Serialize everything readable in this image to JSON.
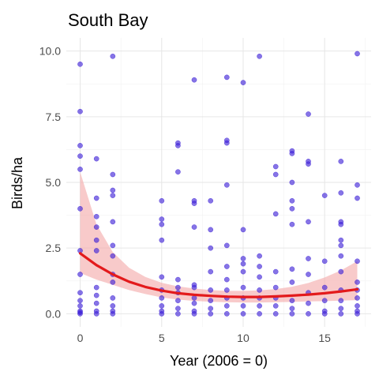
{
  "chart_data": {
    "type": "scatter",
    "title": "South Bay",
    "xlabel": "Year (2006 = 0)",
    "ylabel": "Birds/ha",
    "xlim": [
      -0.85,
      17.85
    ],
    "ylim": [
      -0.5,
      10.5
    ],
    "x_ticks": [
      0,
      5,
      10,
      15
    ],
    "y_ticks": [
      0.0,
      2.5,
      5.0,
      7.5,
      10.0
    ],
    "x_tick_labels": [
      "0",
      "5",
      "10",
      "15"
    ],
    "y_tick_labels": [
      "0.0",
      "2.5",
      "5.0",
      "7.5",
      "10.0"
    ],
    "grid": true,
    "colors": {
      "points": "#3b1fd6",
      "trend_line": "#e31a1c",
      "confidence_band": "#f4a6a6",
      "grid": "#e6e6e6"
    },
    "series": [
      {
        "kind": "points",
        "points": [
          [
            0,
            9.5
          ],
          [
            0,
            7.7
          ],
          [
            0,
            6.4
          ],
          [
            0,
            6.0
          ],
          [
            0,
            5.5
          ],
          [
            0,
            4.0
          ],
          [
            0,
            2.4
          ],
          [
            0,
            1.5
          ],
          [
            0,
            0.8
          ],
          [
            0,
            0.5
          ],
          [
            0,
            0.3
          ],
          [
            0,
            0.1
          ],
          [
            0,
            0.05
          ],
          [
            0,
            0.0
          ],
          [
            1,
            5.9
          ],
          [
            1,
            4.4
          ],
          [
            1,
            3.7
          ],
          [
            1,
            3.3
          ],
          [
            1,
            2.8
          ],
          [
            1,
            2.4
          ],
          [
            1,
            1.0
          ],
          [
            1,
            0.7
          ],
          [
            1,
            0.4
          ],
          [
            1,
            0.1
          ],
          [
            1,
            0.0
          ],
          [
            2,
            9.8
          ],
          [
            2,
            5.3
          ],
          [
            2,
            4.7
          ],
          [
            2,
            4.5
          ],
          [
            2,
            3.5
          ],
          [
            2,
            2.6
          ],
          [
            2,
            2.2
          ],
          [
            2,
            1.5
          ],
          [
            2,
            1.2
          ],
          [
            2,
            0.6
          ],
          [
            2,
            0.3
          ],
          [
            2,
            0.1
          ],
          [
            2,
            0.0
          ],
          [
            5,
            4.3
          ],
          [
            5,
            3.6
          ],
          [
            5,
            3.4
          ],
          [
            5,
            2.8
          ],
          [
            5,
            1.4
          ],
          [
            5,
            0.9
          ],
          [
            5,
            0.6
          ],
          [
            5,
            0.3
          ],
          [
            5,
            0.1
          ],
          [
            5,
            0.0
          ],
          [
            6,
            6.5
          ],
          [
            6,
            6.4
          ],
          [
            6,
            5.4
          ],
          [
            6,
            1.3
          ],
          [
            6,
            1.0
          ],
          [
            6,
            0.8
          ],
          [
            6,
            0.5
          ],
          [
            6,
            0.2
          ],
          [
            6,
            0.0
          ],
          [
            7,
            8.9
          ],
          [
            7,
            4.3
          ],
          [
            7,
            4.2
          ],
          [
            7,
            3.3
          ],
          [
            7,
            1.1
          ],
          [
            7,
            1.0
          ],
          [
            7,
            0.6
          ],
          [
            7,
            0.4
          ],
          [
            7,
            0.1
          ],
          [
            7,
            0.0
          ],
          [
            8,
            4.3
          ],
          [
            8,
            3.2
          ],
          [
            8,
            2.5
          ],
          [
            8,
            1.6
          ],
          [
            8,
            0.9
          ],
          [
            8,
            0.5
          ],
          [
            8,
            0.2
          ],
          [
            8,
            0.0
          ],
          [
            9,
            9.0
          ],
          [
            9,
            6.6
          ],
          [
            9,
            6.5
          ],
          [
            9,
            4.9
          ],
          [
            9,
            2.6
          ],
          [
            9,
            1.8
          ],
          [
            9,
            1.3
          ],
          [
            9,
            0.9
          ],
          [
            9,
            0.6
          ],
          [
            9,
            0.3
          ],
          [
            9,
            0.0
          ],
          [
            10,
            8.8
          ],
          [
            10,
            3.2
          ],
          [
            10,
            2.1
          ],
          [
            10,
            1.9
          ],
          [
            10,
            1.6
          ],
          [
            10,
            1.0
          ],
          [
            10,
            0.6
          ],
          [
            10,
            0.3
          ],
          [
            10,
            0.0
          ],
          [
            11,
            9.8
          ],
          [
            11,
            2.2
          ],
          [
            11,
            1.8
          ],
          [
            11,
            1.4
          ],
          [
            11,
            0.9
          ],
          [
            11,
            0.6
          ],
          [
            11,
            0.3
          ],
          [
            11,
            0.0
          ],
          [
            12,
            5.6
          ],
          [
            12,
            5.3
          ],
          [
            12,
            3.8
          ],
          [
            12,
            1.6
          ],
          [
            12,
            1.0
          ],
          [
            12,
            0.6
          ],
          [
            12,
            0.3
          ],
          [
            12,
            0.0
          ],
          [
            13,
            6.2
          ],
          [
            13,
            6.1
          ],
          [
            13,
            5.0
          ],
          [
            13,
            4.3
          ],
          [
            13,
            4.0
          ],
          [
            13,
            3.4
          ],
          [
            13,
            1.7
          ],
          [
            13,
            1.2
          ],
          [
            13,
            0.5
          ],
          [
            13,
            0.2
          ],
          [
            13,
            0.0
          ],
          [
            14,
            7.6
          ],
          [
            14,
            5.8
          ],
          [
            14,
            5.7
          ],
          [
            14,
            3.5
          ],
          [
            14,
            2.1
          ],
          [
            14,
            1.5
          ],
          [
            14,
            0.8
          ],
          [
            14,
            0.4
          ],
          [
            14,
            0.0
          ],
          [
            15,
            4.5
          ],
          [
            15,
            2.0
          ],
          [
            15,
            1.0
          ],
          [
            15,
            0.5
          ],
          [
            15,
            0.1
          ],
          [
            15,
            0.0
          ],
          [
            16,
            5.8
          ],
          [
            16,
            4.6
          ],
          [
            16,
            3.5
          ],
          [
            16,
            3.4
          ],
          [
            16,
            2.8
          ],
          [
            16,
            2.6
          ],
          [
            16,
            2.2
          ],
          [
            16,
            1.6
          ],
          [
            16,
            0.9
          ],
          [
            16,
            0.5
          ],
          [
            16,
            0.2
          ],
          [
            16,
            0.0
          ],
          [
            17,
            9.9
          ],
          [
            17,
            4.9
          ],
          [
            17,
            4.4
          ],
          [
            17,
            2.0
          ],
          [
            17,
            1.2
          ],
          [
            17,
            0.9
          ],
          [
            17,
            0.6
          ],
          [
            17,
            0.3
          ],
          [
            17,
            0.1
          ],
          [
            17,
            0.0
          ]
        ]
      },
      {
        "kind": "trend",
        "x": [
          0,
          1,
          2,
          3,
          4,
          5,
          6,
          7,
          8,
          9,
          10,
          11,
          12,
          13,
          14,
          15,
          16,
          17
        ],
        "y": [
          2.3,
          1.85,
          1.5,
          1.22,
          1.02,
          0.88,
          0.78,
          0.72,
          0.68,
          0.65,
          0.64,
          0.64,
          0.66,
          0.69,
          0.73,
          0.78,
          0.85,
          0.93
        ],
        "lower": [
          1.55,
          1.3,
          1.1,
          0.9,
          0.75,
          0.62,
          0.54,
          0.49,
          0.46,
          0.44,
          0.43,
          0.43,
          0.44,
          0.45,
          0.47,
          0.48,
          0.5,
          0.52
        ],
        "upper": [
          5.4,
          3.4,
          2.35,
          1.75,
          1.4,
          1.18,
          1.04,
          0.96,
          0.9,
          0.87,
          0.87,
          0.89,
          0.94,
          1.03,
          1.17,
          1.38,
          1.65,
          2.0
        ]
      }
    ]
  }
}
